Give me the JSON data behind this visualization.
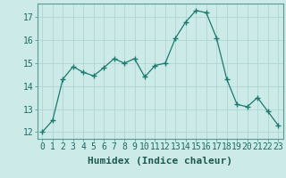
{
  "x": [
    0,
    1,
    2,
    3,
    4,
    5,
    6,
    7,
    8,
    9,
    10,
    11,
    12,
    13,
    14,
    15,
    16,
    17,
    18,
    19,
    20,
    21,
    22,
    23
  ],
  "y": [
    12.0,
    12.5,
    14.3,
    14.85,
    14.6,
    14.45,
    14.8,
    15.2,
    15.0,
    15.2,
    14.4,
    14.9,
    15.0,
    16.1,
    16.8,
    17.3,
    17.2,
    16.1,
    14.3,
    13.2,
    13.1,
    13.5,
    12.9,
    12.3
  ],
  "line_color": "#1c7a6e",
  "marker": "+",
  "marker_size": 5,
  "bg_color": "#cceae8",
  "grid_color": "#b0d5d2",
  "xlabel": "Humidex (Indice chaleur)",
  "xlim": [
    -0.5,
    23.5
  ],
  "ylim": [
    11.7,
    17.6
  ],
  "yticks": [
    12,
    13,
    14,
    15,
    16,
    17
  ],
  "xticks": [
    0,
    1,
    2,
    3,
    4,
    5,
    6,
    7,
    8,
    9,
    10,
    11,
    12,
    13,
    14,
    15,
    16,
    17,
    18,
    19,
    20,
    21,
    22,
    23
  ],
  "xlabel_fontsize": 8,
  "tick_fontsize": 7
}
